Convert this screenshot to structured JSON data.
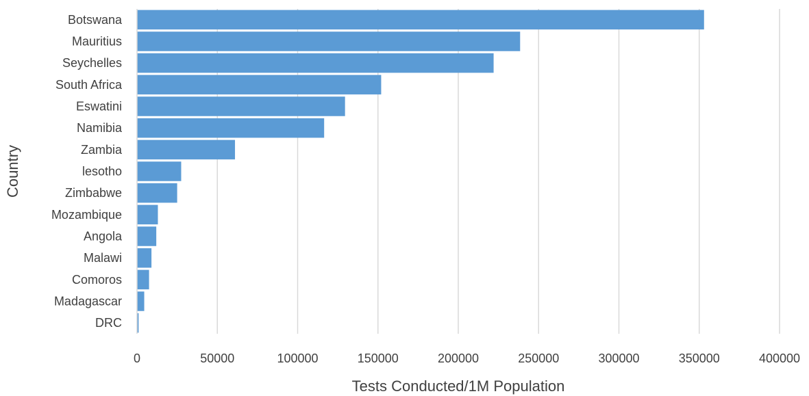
{
  "chart_data": {
    "type": "bar",
    "orientation": "horizontal",
    "title": "",
    "xlabel": "Tests Conducted/1M Population",
    "ylabel": "Country",
    "categories": [
      "Botswana",
      "Mauritius",
      "Seychelles",
      "South Africa",
      "Eswatini",
      "Namibia",
      "Zambia",
      "lesotho",
      "Zimbabwe",
      "Mozambique",
      "Angola",
      "Malawi",
      "Comoros",
      "Madagascar",
      "DRC"
    ],
    "values": [
      353000,
      238500,
      222000,
      152000,
      129500,
      116500,
      61000,
      27500,
      25000,
      13000,
      12000,
      9000,
      7500,
      4500,
      1000
    ],
    "xlim": [
      0,
      400000
    ],
    "x_ticks": [
      "0",
      "50000",
      "100000",
      "150000",
      "200000",
      "250000",
      "300000",
      "350000",
      "400000"
    ],
    "grid": "vertical",
    "legend": "none",
    "bar_color": "#5b9bd5",
    "grid_color": "#d9d9d9"
  }
}
